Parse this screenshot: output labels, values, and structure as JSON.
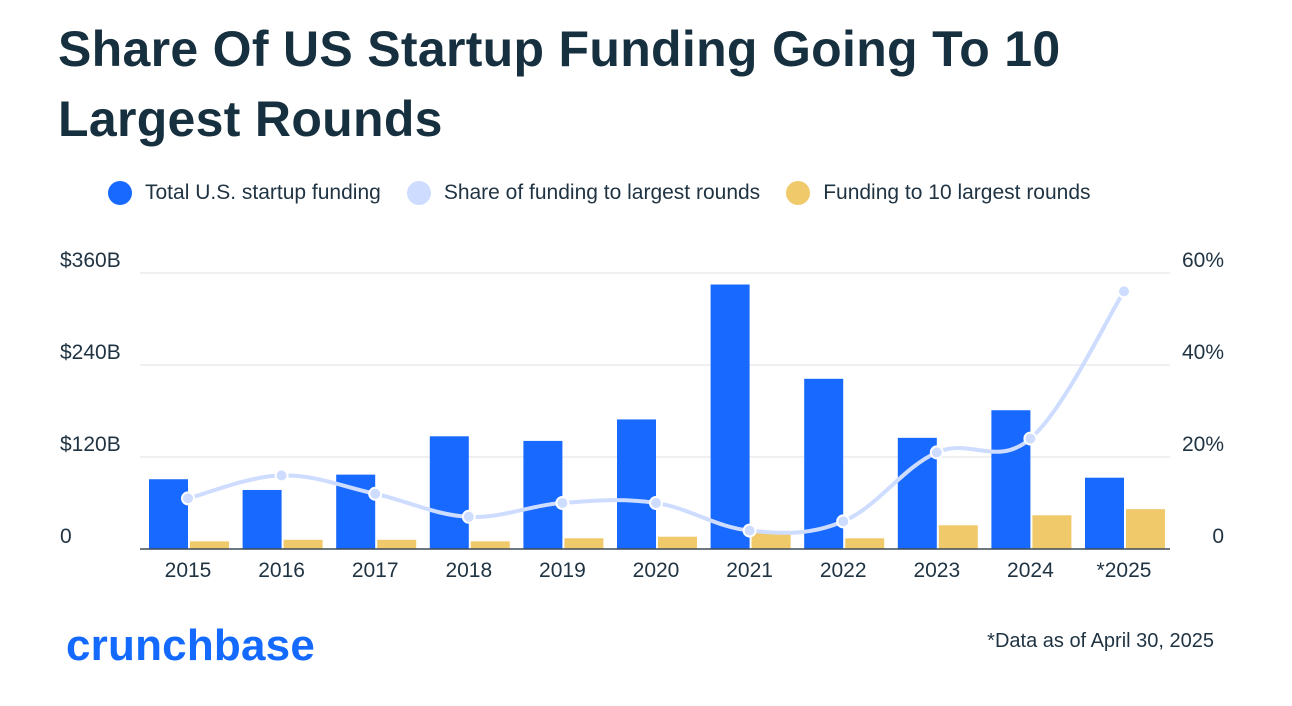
{
  "title": "Share Of US Startup Funding Going To 10 Largest Rounds",
  "brand": "crunchbase",
  "footnote": "*Data as of April 30, 2025",
  "colors": {
    "total_funding": "#1769ff",
    "share_line": "#cddcff",
    "top10_funding": "#f0c96a",
    "title": "#17303f",
    "gridline": "#e5e7ea",
    "baseline": "#3d4a56"
  },
  "chart_data": {
    "type": "bar",
    "title": "Share Of US Startup Funding Going To 10 Largest Rounds",
    "xlabel": "",
    "ylabel": "",
    "categories": [
      "2015",
      "2016",
      "2017",
      "2018",
      "2019",
      "2020",
      "2021",
      "2022",
      "2023",
      "2024",
      "*2025"
    ],
    "series": [
      {
        "name": "Total U.S. startup funding",
        "type": "bar",
        "axis": "left",
        "unit": "$B",
        "values": [
          91,
          77,
          97,
          147,
          141,
          169,
          345,
          222,
          145,
          181,
          93
        ]
      },
      {
        "name": "Share of funding to largest rounds",
        "type": "line",
        "axis": "right",
        "unit": "%",
        "values": [
          11,
          16,
          12,
          7,
          10,
          10,
          4,
          6,
          21,
          24,
          56
        ]
      },
      {
        "name": "Funding to 10 largest rounds",
        "type": "bar",
        "axis": "left",
        "unit": "$B",
        "values": [
          10,
          12,
          12,
          10,
          14,
          16,
          23,
          14,
          31,
          44,
          52
        ]
      }
    ],
    "left_axis": {
      "ylim": [
        0,
        360
      ],
      "ticks": [
        0,
        120,
        240,
        360
      ],
      "tick_labels": [
        "0",
        "$120B",
        "$240B",
        "$360B"
      ]
    },
    "right_axis": {
      "ylim": [
        0,
        60
      ],
      "ticks": [
        0,
        20,
        40,
        60
      ],
      "tick_labels": [
        "0",
        "20%",
        "40%",
        "60%"
      ]
    },
    "grid": true,
    "legend": "top"
  }
}
